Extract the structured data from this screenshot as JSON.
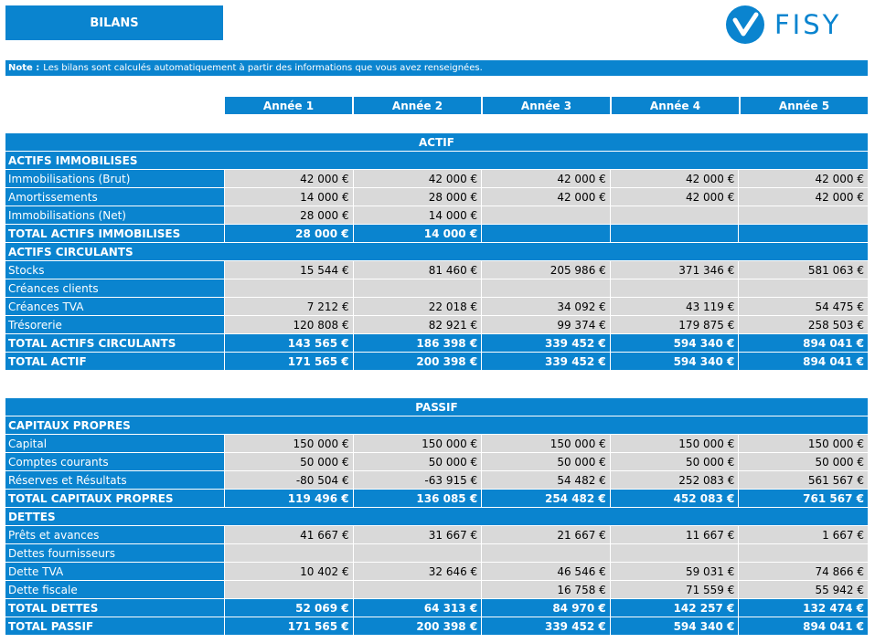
{
  "header": {
    "title": "BILANS"
  },
  "logo": {
    "wordmark": "FISY",
    "brand_color": "#0a84cf"
  },
  "note": {
    "label": "Note :",
    "text": "Les bilans sont calculés automatiquement à partir des informations que vous avez renseignées."
  },
  "years": [
    "Année 1",
    "Année 2",
    "Année 3",
    "Année 4",
    "Année 5"
  ],
  "actif": {
    "title": "ACTIF",
    "immobilises": {
      "title": "ACTIFS IMMOBILISES",
      "rows": [
        {
          "label": "Immobilisations (Brut)",
          "values": [
            "42 000 €",
            "42 000 €",
            "42 000 €",
            "42 000 €",
            "42 000 €"
          ]
        },
        {
          "label": "Amortissements",
          "values": [
            "14 000 €",
            "28 000 €",
            "42 000 €",
            "42 000 €",
            "42 000 €"
          ]
        },
        {
          "label": "Immobilisations (Net)",
          "values": [
            "28 000 €",
            "14 000 €",
            "",
            "",
            ""
          ]
        }
      ],
      "total": {
        "label": "TOTAL ACTIFS IMMOBILISES",
        "values": [
          "28 000 €",
          "14 000 €",
          "",
          "",
          ""
        ]
      }
    },
    "circulants": {
      "title": "ACTIFS CIRCULANTS",
      "rows": [
        {
          "label": "Stocks",
          "values": [
            "15 544 €",
            "81 460 €",
            "205 986 €",
            "371 346 €",
            "581 063 €"
          ]
        },
        {
          "label": "Créances clients",
          "values": [
            "",
            "",
            "",
            "",
            ""
          ]
        },
        {
          "label": "Créances TVA",
          "values": [
            "7 212 €",
            "22 018 €",
            "34 092 €",
            "43 119 €",
            "54 475 €"
          ]
        },
        {
          "label": "Trésorerie",
          "values": [
            "120 808 €",
            "82 921 €",
            "99 374 €",
            "179 875 €",
            "258 503 €"
          ]
        }
      ],
      "total": {
        "label": "TOTAL ACTIFS CIRCULANTS",
        "values": [
          "143 565 €",
          "186 398 €",
          "339 452 €",
          "594 340 €",
          "894 041 €"
        ]
      }
    },
    "total": {
      "label": "TOTAL ACTIF",
      "values": [
        "171 565 €",
        "200 398 €",
        "339 452 €",
        "594 340 €",
        "894 041 €"
      ]
    }
  },
  "passif": {
    "title": "PASSIF",
    "capitaux": {
      "title": "CAPITAUX PROPRES",
      "rows": [
        {
          "label": "Capital",
          "values": [
            "150 000 €",
            "150 000 €",
            "150 000 €",
            "150 000 €",
            "150 000 €"
          ]
        },
        {
          "label": "Comptes courants",
          "values": [
            "50 000 €",
            "50 000 €",
            "50 000 €",
            "50 000 €",
            "50 000 €"
          ]
        },
        {
          "label": "Réserves et Résultats",
          "values": [
            "-80 504 €",
            "-63 915 €",
            "54 482 €",
            "252 083 €",
            "561 567 €"
          ]
        }
      ],
      "total": {
        "label": "TOTAL CAPITAUX PROPRES",
        "values": [
          "119 496 €",
          "136 085 €",
          "254 482 €",
          "452 083 €",
          "761 567 €"
        ]
      }
    },
    "dettes": {
      "title": "DETTES",
      "rows": [
        {
          "label": "Prêts et avances",
          "values": [
            "41 667 €",
            "31 667 €",
            "21 667 €",
            "11 667 €",
            "1 667 €"
          ]
        },
        {
          "label": "Dettes fournisseurs",
          "values": [
            "",
            "",
            "",
            "",
            ""
          ]
        },
        {
          "label": "Dette TVA",
          "values": [
            "10 402 €",
            "32 646 €",
            "46 546 €",
            "59 031 €",
            "74 866 €"
          ]
        },
        {
          "label": "Dette fiscale",
          "values": [
            "",
            "",
            "16 758 €",
            "71 559 €",
            "55 942 €"
          ]
        }
      ],
      "total": {
        "label": "TOTAL DETTES",
        "values": [
          "52 069 €",
          "64 313 €",
          "84 970 €",
          "142 257 €",
          "132 474 €"
        ]
      }
    },
    "total": {
      "label": "TOTAL PASSIF",
      "values": [
        "171 565 €",
        "200 398 €",
        "339 452 €",
        "594 340 €",
        "894 041 €"
      ]
    }
  }
}
